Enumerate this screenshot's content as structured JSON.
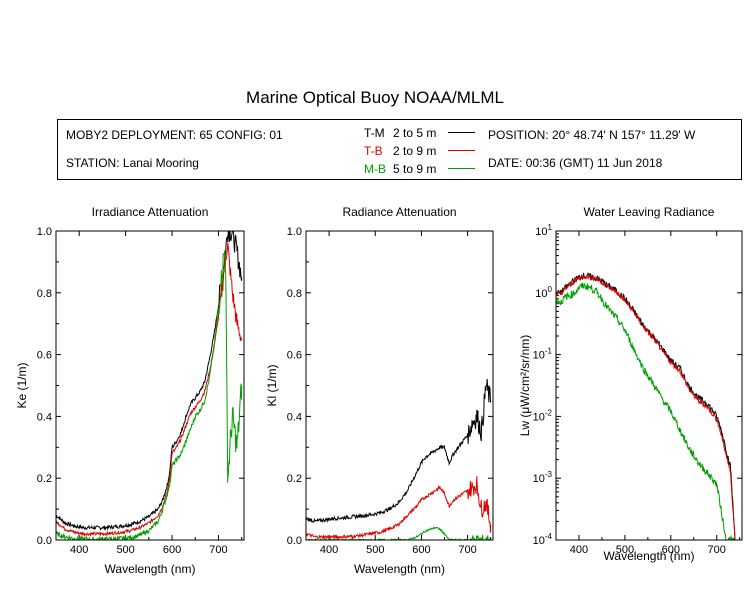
{
  "title": "Marine Optical Buoy NOAA/MLML",
  "info": {
    "deployment": "MOBY2 DEPLOYMENT: 65 CONFIG: 01",
    "station": "STATION: Lanai Mooring",
    "position": "POSITION: 20° 48.74' N   157° 11.29' W",
    "date": "DATE: 00:36 (GMT) 11 Jun 2018"
  },
  "legend": [
    {
      "code": "T-M",
      "range": "2 to 5  m",
      "color": "#000000"
    },
    {
      "code": "T-B",
      "range": "2 to 9  m",
      "color": "#dd0000"
    },
    {
      "code": "M-B",
      "range": "5 to 9  m",
      "color": "#00a000"
    }
  ],
  "chart_data": [
    {
      "type": "line",
      "title": "Irradiance Attenuation",
      "xlabel": "Wavelength (nm)",
      "ylabel": "Ke  (1/m)",
      "xlim": [
        350,
        755
      ],
      "ylim": [
        0,
        1.0
      ],
      "xticks": [
        "400",
        "500",
        "600",
        "700"
      ],
      "yticks": [
        "0.0",
        "0.2",
        "0.4",
        "0.6",
        "0.8",
        "1.0"
      ],
      "x": [
        350,
        370,
        390,
        410,
        430,
        450,
        470,
        490,
        510,
        530,
        550,
        570,
        580,
        590,
        595,
        600,
        610,
        620,
        630,
        640,
        650,
        660,
        670,
        680,
        690,
        700,
        710,
        715,
        720,
        730,
        740,
        750
      ],
      "series": [
        {
          "name": "T-M",
          "color": "#000000",
          "noise": 0.012,
          "values": [
            0.08,
            0.055,
            0.045,
            0.04,
            0.04,
            0.04,
            0.042,
            0.045,
            0.05,
            0.06,
            0.075,
            0.1,
            0.13,
            0.18,
            0.22,
            0.3,
            0.32,
            0.35,
            0.4,
            0.44,
            0.46,
            0.48,
            0.51,
            0.58,
            0.66,
            0.76,
            0.88,
            0.93,
            1.0,
            1.0,
            0.93,
            0.85
          ]
        },
        {
          "name": "T-B",
          "color": "#dd0000",
          "noise": 0.01,
          "values": [
            0.06,
            0.035,
            0.025,
            0.02,
            0.02,
            0.02,
            0.022,
            0.025,
            0.03,
            0.04,
            0.055,
            0.08,
            0.11,
            0.16,
            0.2,
            0.28,
            0.3,
            0.33,
            0.37,
            0.41,
            0.43,
            0.45,
            0.48,
            0.54,
            0.62,
            0.72,
            0.84,
            0.92,
            0.95,
            0.8,
            0.7,
            0.65
          ]
        },
        {
          "name": "M-B",
          "color": "#00a000",
          "noise": 0.015,
          "values": [
            0.02,
            0.01,
            0.005,
            0.003,
            0.002,
            0.002,
            0.003,
            0.005,
            0.008,
            0.015,
            0.03,
            0.06,
            0.1,
            0.15,
            0.18,
            0.24,
            0.26,
            0.28,
            0.32,
            0.36,
            0.4,
            0.42,
            0.45,
            0.52,
            0.62,
            0.75,
            0.9,
            0.95,
            0.2,
            0.4,
            0.3,
            0.5
          ]
        }
      ]
    },
    {
      "type": "line",
      "title": "Radiance Attenuation",
      "xlabel": "Wavelength (nm)",
      "ylabel": "Kl  (1/m)",
      "xlim": [
        350,
        755
      ],
      "ylim": [
        0,
        1.0
      ],
      "xticks": [
        "400",
        "500",
        "600",
        "700"
      ],
      "yticks": [
        "0.0",
        "0.2",
        "0.4",
        "0.6",
        "0.8",
        "1.0"
      ],
      "x": [
        350,
        370,
        390,
        410,
        430,
        450,
        470,
        490,
        510,
        530,
        550,
        570,
        590,
        600,
        610,
        620,
        630,
        640,
        650,
        660,
        670,
        680,
        690,
        700,
        710,
        720,
        730,
        740,
        750
      ],
      "series": [
        {
          "name": "T-M",
          "color": "#000000",
          "noise": 0.012,
          "values": [
            0.07,
            0.06,
            0.065,
            0.07,
            0.072,
            0.075,
            0.078,
            0.082,
            0.088,
            0.1,
            0.12,
            0.16,
            0.22,
            0.25,
            0.27,
            0.28,
            0.29,
            0.3,
            0.3,
            0.25,
            0.28,
            0.3,
            0.32,
            0.34,
            0.38,
            0.4,
            0.35,
            0.5,
            0.45
          ]
        },
        {
          "name": "T-B",
          "color": "#dd0000",
          "noise": 0.01,
          "values": [
            0.02,
            0.01,
            0.01,
            0.01,
            0.01,
            0.012,
            0.015,
            0.02,
            0.025,
            0.035,
            0.05,
            0.08,
            0.11,
            0.13,
            0.14,
            0.15,
            0.16,
            0.17,
            0.15,
            0.11,
            0.13,
            0.14,
            0.15,
            0.16,
            0.17,
            0.18,
            0.1,
            0.12,
            0.05
          ]
        },
        {
          "name": "M-B",
          "color": "#00a000",
          "noise": 0.006,
          "values": [
            0.0,
            0.0,
            0.0,
            0.0,
            0.0,
            0.0,
            0.0,
            0.0,
            0.0,
            0.0,
            0.0,
            0.0,
            0.01,
            0.02,
            0.03,
            0.035,
            0.04,
            0.035,
            0.02,
            0.0,
            0.0,
            0.0,
            0.0,
            0.0,
            0.0,
            0.0,
            0.0,
            0.0,
            0.0
          ]
        }
      ]
    },
    {
      "type": "line",
      "title": "Water Leaving Radiance",
      "xlabel": "Wavelength (nm)",
      "ylabel": "Lw  (μW/cm²/sr/nm)",
      "scale": "log",
      "xlim": [
        350,
        755
      ],
      "ylim": [
        0.0001,
        10
      ],
      "xticks": [
        "400",
        "500",
        "600",
        "700"
      ],
      "yticks": [
        "10-4",
        "10-3",
        "10-2",
        "10-1",
        "100",
        "101"
      ],
      "x": [
        350,
        360,
        370,
        380,
        390,
        400,
        410,
        420,
        430,
        440,
        450,
        460,
        480,
        500,
        520,
        540,
        560,
        580,
        600,
        620,
        640,
        660,
        680,
        700,
        710,
        720,
        730,
        740
      ],
      "series": [
        {
          "name": "T-M",
          "color": "#000000",
          "noise": 0.05,
          "values": [
            1.0,
            1.0,
            1.2,
            1.4,
            1.6,
            1.8,
            1.9,
            1.85,
            1.8,
            1.7,
            1.55,
            1.35,
            1.1,
            0.8,
            0.5,
            0.3,
            0.2,
            0.13,
            0.08,
            0.06,
            0.03,
            0.02,
            0.016,
            0.01,
            0.006,
            0.003,
            0.0015,
            0.0001
          ]
        },
        {
          "name": "T-B",
          "color": "#dd0000",
          "noise": 0.04,
          "values": [
            0.95,
            0.95,
            1.15,
            1.35,
            1.55,
            1.75,
            1.85,
            1.8,
            1.75,
            1.65,
            1.5,
            1.3,
            1.05,
            0.75,
            0.48,
            0.28,
            0.19,
            0.12,
            0.075,
            0.055,
            0.027,
            0.018,
            0.014,
            0.009,
            0.005,
            0.0025,
            0.0012,
            0.0001
          ]
        },
        {
          "name": "M-B",
          "color": "#00a000",
          "noise": 0.06,
          "values": [
            0.75,
            0.7,
            0.85,
            0.9,
            1.0,
            1.2,
            1.3,
            1.25,
            1.15,
            1.0,
            0.8,
            0.6,
            0.4,
            0.25,
            0.12,
            0.06,
            0.035,
            0.02,
            0.012,
            0.006,
            0.003,
            0.0018,
            0.0012,
            0.0008,
            0.0003,
            0.0001,
            0.0001,
            0.0001
          ]
        }
      ]
    }
  ]
}
